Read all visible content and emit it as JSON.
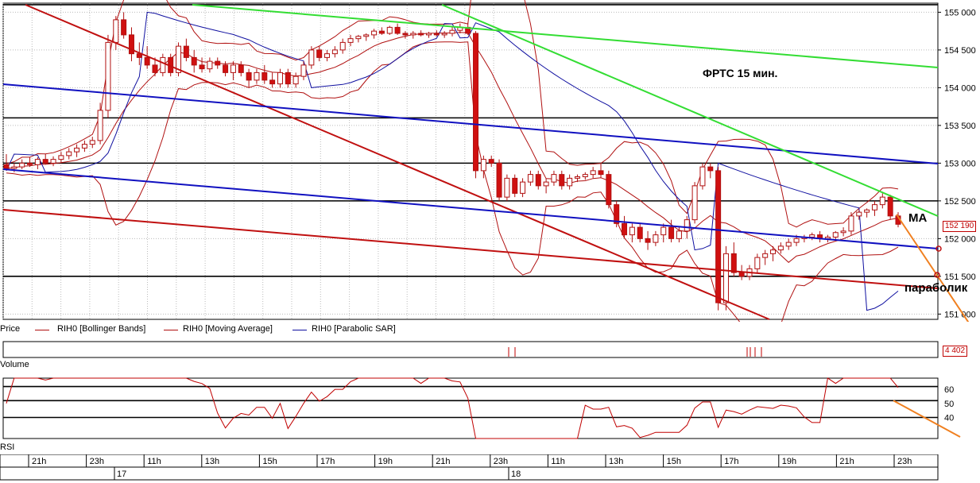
{
  "chart_data": {
    "type": "line",
    "title": "ФРТС   15 мин.",
    "price_axis": {
      "ylim": [
        150930,
        155120
      ],
      "ticks": [
        151000,
        151500,
        152000,
        152500,
        153000,
        153500,
        154000,
        154500,
        155000
      ],
      "tick_labels": [
        "151 000",
        "151 500",
        "152 000",
        "152 500",
        "153 000",
        "153 500",
        "154 000",
        "154 500",
        "155 000"
      ],
      "horizontal_levels": [
        155100,
        153600,
        153000,
        152500,
        151500
      ]
    },
    "current_price_label": "152 190",
    "volume_label": "4 402",
    "rsi_axis": {
      "ylim": [
        25,
        68
      ],
      "ticks": [
        40,
        50,
        60
      ],
      "tick_labels": [
        "40",
        "50",
        "60"
      ],
      "levels": [
        40,
        52,
        62
      ]
    },
    "time_labels": [
      "21h",
      "23h",
      "11h",
      "13h",
      "15h",
      "17h",
      "19h",
      "21h",
      "23h",
      "11h",
      "13h",
      "15h",
      "17h",
      "19h",
      "21h",
      "23h"
    ],
    "day_labels": [
      "17",
      "18"
    ],
    "candles": [
      [
        152980,
        153120,
        152900,
        152930
      ],
      [
        152930,
        153000,
        152880,
        152950
      ],
      [
        152950,
        153050,
        152920,
        153000
      ],
      [
        153000,
        153080,
        152950,
        152980
      ],
      [
        152980,
        153080,
        152920,
        153050
      ],
      [
        153050,
        153120,
        152980,
        153000
      ],
      [
        153000,
        153090,
        152960,
        153050
      ],
      [
        153050,
        153150,
        153000,
        153100
      ],
      [
        153100,
        153200,
        153050,
        153150
      ],
      [
        153150,
        153250,
        153080,
        153200
      ],
      [
        153200,
        153300,
        153150,
        153250
      ],
      [
        153250,
        153350,
        153200,
        153300
      ],
      [
        153300,
        153800,
        153250,
        153700
      ],
      [
        153700,
        154700,
        153600,
        154600
      ],
      [
        154600,
        154950,
        154500,
        154900
      ],
      [
        154900,
        155000,
        154650,
        154700
      ],
      [
        154700,
        154800,
        154350,
        154450
      ],
      [
        154450,
        154600,
        154300,
        154400
      ],
      [
        154400,
        154550,
        154250,
        154300
      ],
      [
        154300,
        154400,
        154150,
        154200
      ],
      [
        154200,
        154450,
        154150,
        154400
      ],
      [
        154400,
        154450,
        154150,
        154200
      ],
      [
        154200,
        154600,
        154150,
        154550
      ],
      [
        154550,
        154650,
        154350,
        154400
      ],
      [
        154400,
        154500,
        154200,
        154300
      ],
      [
        154300,
        154400,
        154200,
        154250
      ],
      [
        154250,
        154400,
        154200,
        154350
      ],
      [
        154350,
        154400,
        154250,
        154300
      ],
      [
        154300,
        154350,
        154150,
        154200
      ],
      [
        154200,
        154350,
        154100,
        154300
      ],
      [
        154300,
        154350,
        154150,
        154200
      ],
      [
        154200,
        154250,
        154000,
        154100
      ],
      [
        154100,
        154250,
        154050,
        154200
      ],
      [
        154200,
        154300,
        154050,
        154100
      ],
      [
        154100,
        154200,
        154000,
        154050
      ],
      [
        154050,
        154250,
        154000,
        154200
      ],
      [
        154200,
        154250,
        154000,
        154050
      ],
      [
        154050,
        154200,
        154000,
        154150
      ],
      [
        154150,
        154350,
        154100,
        154300
      ],
      [
        154300,
        154550,
        154250,
        154500
      ],
      [
        154500,
        154550,
        154350,
        154400
      ],
      [
        154400,
        154500,
        154350,
        154450
      ],
      [
        154450,
        154550,
        154400,
        154500
      ],
      [
        154500,
        154650,
        154450,
        154600
      ],
      [
        154600,
        154700,
        154550,
        154650
      ],
      [
        154650,
        154700,
        154600,
        154680
      ],
      [
        154680,
        154720,
        154620,
        154700
      ],
      [
        154700,
        154780,
        154650,
        154750
      ],
      [
        154750,
        154800,
        154700,
        154720
      ],
      [
        154720,
        154820,
        154700,
        154800
      ],
      [
        154800,
        154850,
        154700,
        154720
      ],
      [
        154720,
        154750,
        154650,
        154700
      ],
      [
        154700,
        154750,
        154650,
        154720
      ],
      [
        154720,
        154760,
        154680,
        154700
      ],
      [
        154700,
        154740,
        154660,
        154720
      ],
      [
        154720,
        154760,
        154680,
        154700
      ],
      [
        154700,
        154750,
        154660,
        154720
      ],
      [
        154720,
        154800,
        154680,
        154760
      ],
      [
        154760,
        154850,
        154720,
        154800
      ],
      [
        154800,
        154860,
        154700,
        154720
      ],
      [
        154720,
        154750,
        152800,
        152900
      ],
      [
        152900,
        153100,
        152800,
        153050
      ],
      [
        153050,
        153100,
        152950,
        153000
      ],
      [
        153000,
        153050,
        152500,
        152550
      ],
      [
        152550,
        152850,
        152500,
        152800
      ],
      [
        152800,
        152850,
        152550,
        152600
      ],
      [
        152600,
        152800,
        152550,
        152750
      ],
      [
        152750,
        152900,
        152700,
        152850
      ],
      [
        152850,
        152900,
        152650,
        152700
      ],
      [
        152700,
        152800,
        152600,
        152750
      ],
      [
        152750,
        152900,
        152700,
        152850
      ],
      [
        152850,
        152900,
        152650,
        152700
      ],
      [
        152700,
        152850,
        152650,
        152800
      ],
      [
        152800,
        152850,
        152750,
        152820
      ],
      [
        152820,
        152880,
        152780,
        152850
      ],
      [
        152850,
        152950,
        152800,
        152900
      ],
      [
        152900,
        153000,
        152800,
        152850
      ],
      [
        152850,
        152900,
        152400,
        152450
      ],
      [
        152450,
        152500,
        152150,
        152200
      ],
      [
        152200,
        152300,
        152000,
        152050
      ],
      [
        152050,
        152200,
        151950,
        152150
      ],
      [
        152150,
        152200,
        151950,
        152000
      ],
      [
        152000,
        152100,
        151850,
        151950
      ],
      [
        151950,
        152100,
        151900,
        152050
      ],
      [
        152050,
        152200,
        151950,
        152150
      ],
      [
        152150,
        152250,
        151950,
        152000
      ],
      [
        152000,
        152150,
        151950,
        152100
      ],
      [
        152100,
        152300,
        152000,
        152250
      ],
      [
        152250,
        152750,
        152200,
        152700
      ],
      [
        152700,
        153000,
        152650,
        152950
      ],
      [
        152950,
        153000,
        152800,
        152900
      ],
      [
        152900,
        152950,
        151050,
        151150
      ],
      [
        151150,
        151900,
        151050,
        151800
      ],
      [
        151800,
        151950,
        151500,
        151550
      ],
      [
        151550,
        151650,
        151450,
        151500
      ],
      [
        151500,
        151650,
        151450,
        151600
      ],
      [
        151600,
        151800,
        151550,
        151750
      ],
      [
        151750,
        151850,
        151650,
        151800
      ],
      [
        151800,
        151900,
        151700,
        151850
      ],
      [
        151850,
        151950,
        151800,
        151900
      ],
      [
        151900,
        152000,
        151850,
        151950
      ],
      [
        151950,
        152050,
        151900,
        152000
      ],
      [
        152000,
        152050,
        151950,
        152020
      ],
      [
        152020,
        152080,
        151980,
        152050
      ],
      [
        152050,
        152100,
        151950,
        152000
      ],
      [
        152000,
        152050,
        151950,
        152020
      ],
      [
        152020,
        152100,
        151980,
        152080
      ],
      [
        152080,
        152150,
        152030,
        152100
      ],
      [
        152100,
        152350,
        152050,
        152300
      ],
      [
        152300,
        152380,
        152250,
        152350
      ],
      [
        152350,
        152400,
        152280,
        152380
      ],
      [
        152380,
        152500,
        152300,
        152450
      ],
      [
        152450,
        152600,
        152400,
        152550
      ],
      [
        152550,
        152580,
        152250,
        152300
      ],
      [
        152300,
        152350,
        152150,
        152190
      ]
    ]
  },
  "annotations": {
    "ma": "MA",
    "parabolic": "параболик"
  },
  "legend": {
    "price": "Price",
    "bollinger": "RIH0 [Bollinger Bands]",
    "ma": "RIH0 [Moving Average]",
    "sar": "RIH0 [Parabolic SAR]",
    "volume": "Volume",
    "rsi": "RSI"
  },
  "colors": {
    "bull": "#ffffff",
    "bear": "#d01010",
    "bollinger": "#b01010",
    "sar": "#1010a0",
    "green": "#33dd33",
    "blue_trend": "#1010c0",
    "red_trend": "#c01010",
    "orange": "#f08020"
  }
}
